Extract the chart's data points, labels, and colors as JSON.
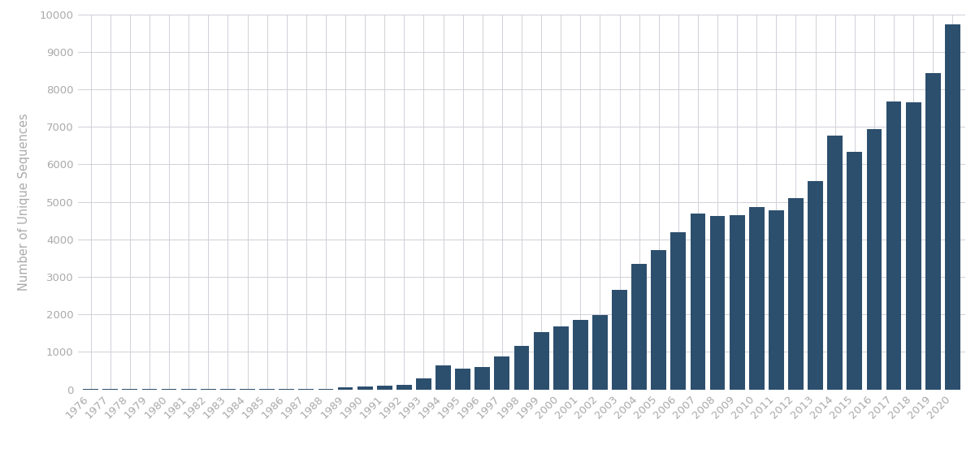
{
  "years": [
    1976,
    1977,
    1978,
    1979,
    1980,
    1981,
    1982,
    1983,
    1984,
    1985,
    1986,
    1987,
    1988,
    1989,
    1990,
    1991,
    1992,
    1993,
    1994,
    1995,
    1996,
    1997,
    1998,
    1999,
    2000,
    2001,
    2002,
    2003,
    2004,
    2005,
    2006,
    2007,
    2008,
    2009,
    2010,
    2011,
    2012,
    2013,
    2014,
    2015,
    2016,
    2017,
    2018,
    2019,
    2020
  ],
  "values": [
    5,
    5,
    5,
    5,
    10,
    10,
    25,
    15,
    10,
    10,
    15,
    15,
    20,
    55,
    90,
    110,
    120,
    305,
    640,
    560,
    610,
    870,
    1160,
    1540,
    1680,
    1860,
    1980,
    2650,
    3350,
    3720,
    4190,
    4680,
    4620,
    4650,
    4870,
    4780,
    5110,
    5550,
    6760,
    6340,
    6930,
    7680,
    7660,
    8430,
    9720
  ],
  "bar_color": "#2d4f6e",
  "ylabel": "Number of Unique Sequences",
  "ylim": [
    0,
    10000
  ],
  "yticks": [
    0,
    1000,
    2000,
    3000,
    4000,
    5000,
    6000,
    7000,
    8000,
    9000,
    10000
  ],
  "background_color": "#ffffff",
  "grid_color": "#d0d0d8",
  "tick_color": "#aaaaaa",
  "ylabel_fontsize": 10.5,
  "tick_fontsize": 9.5
}
